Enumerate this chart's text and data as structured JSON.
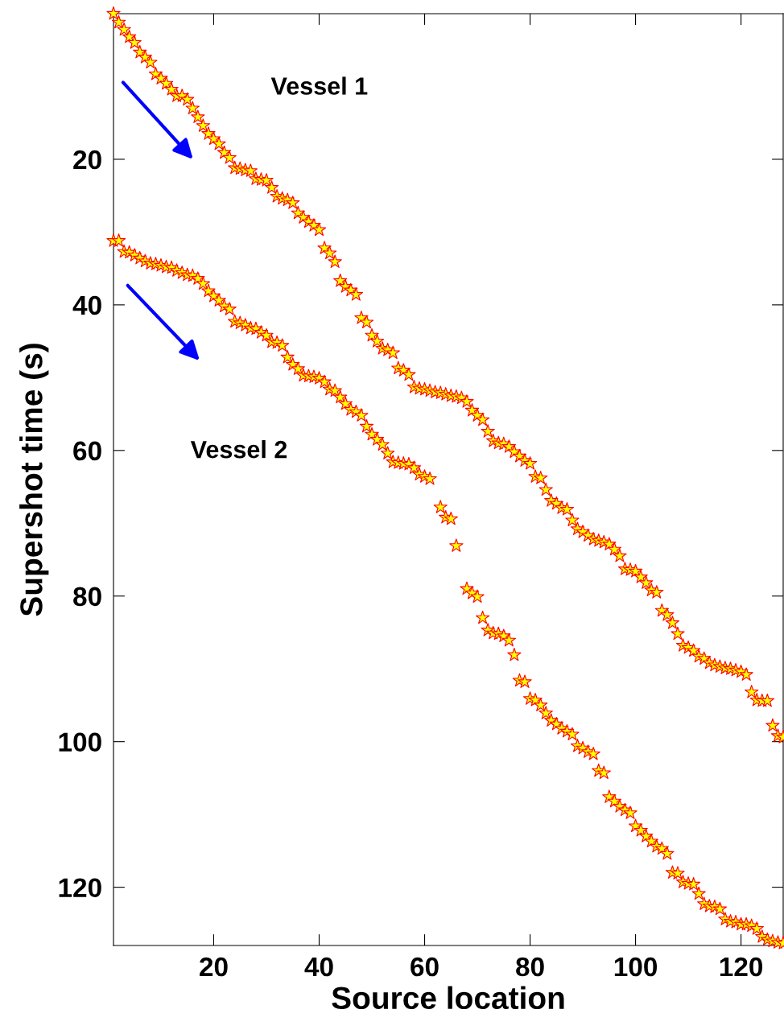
{
  "chart_data": {
    "type": "scatter",
    "xlabel": "Source location",
    "ylabel": "Supershot time (s)",
    "x": [
      1,
      2,
      3,
      4,
      5,
      6,
      7,
      8,
      9,
      10,
      11,
      12,
      13,
      14,
      15,
      16,
      17,
      18,
      19,
      20,
      21,
      22,
      23,
      24,
      25,
      26,
      27,
      28,
      29,
      30,
      31,
      32,
      33,
      34,
      35,
      36,
      37,
      38,
      39,
      40,
      41,
      42,
      43,
      44,
      45,
      46,
      47,
      48,
      49,
      50,
      51,
      52,
      53,
      54,
      55,
      56,
      57,
      58,
      59,
      60,
      61,
      62,
      63,
      64,
      65,
      66,
      67,
      68,
      69,
      70,
      71,
      72,
      73,
      74,
      75,
      76,
      77,
      78,
      79,
      80,
      81,
      82,
      83,
      84,
      85,
      86,
      87,
      88,
      89,
      90,
      91,
      92,
      93,
      94,
      95,
      96,
      97,
      98,
      99,
      100,
      101,
      102,
      103,
      104,
      105,
      106,
      107,
      108,
      109,
      110,
      111,
      112,
      113,
      114,
      115,
      116,
      117,
      118,
      119,
      120,
      121,
      122,
      123,
      124,
      125,
      126,
      127,
      128
    ],
    "series": [
      {
        "name": "Vessel 1",
        "color": "#ffff00",
        "values": [
          0,
          1.2,
          2.2,
          3.2,
          4,
          5.3,
          6,
          6.7,
          8.3,
          8.9,
          9.6,
          10.4,
          11.3,
          11.3,
          11.8,
          13,
          14.2,
          15.4,
          16.5,
          17.2,
          17.9,
          19.1,
          19.8,
          21.2,
          21.3,
          21.5,
          21.6,
          22.7,
          22.8,
          22.9,
          23.9,
          25.1,
          25.4,
          25.6,
          26,
          27.4,
          28,
          28.6,
          29.1,
          29.7,
          32.2,
          32.9,
          34.1,
          36.7,
          37.5,
          38,
          38.6,
          41.8,
          42.4,
          44.2,
          45,
          46,
          46.2,
          46.6,
          48.7,
          49,
          49.6,
          51.3,
          51.5,
          51.6,
          51.8,
          52,
          52.1,
          52.3,
          52.5,
          52.6,
          52.8,
          53.3,
          54.5,
          55.2,
          55.8,
          57.4,
          58.7,
          59,
          59.1,
          59.5,
          60.2,
          60.8,
          61.4,
          61.8,
          63.6,
          63.8,
          65.4,
          66.9,
          67.3,
          67.9,
          68.1,
          69.6,
          70.8,
          71.2,
          71.7,
          72.2,
          72.4,
          72.6,
          72.9,
          73.6,
          74.5,
          76.3,
          76.4,
          76.6,
          77.4,
          78.2,
          79.2,
          79.5,
          82,
          82.6,
          83.7,
          85.2,
          86.8,
          87.1,
          87.5,
          88.3,
          88.6,
          89.2,
          89.5,
          89.7,
          89.9,
          90,
          90.2,
          90.4,
          90.8,
          93.2,
          94.3,
          94.4,
          94.4,
          97.8,
          99.2,
          99.4
        ]
      },
      {
        "name": "Vessel 2",
        "color": "#ffff00",
        "values": [
          31.2,
          31.2,
          32.7,
          32.8,
          33.2,
          33.6,
          34,
          34.3,
          34.4,
          34.6,
          34.8,
          34.9,
          35.3,
          35.6,
          35.9,
          36,
          36.4,
          37.1,
          38.1,
          38.8,
          39.4,
          40.2,
          40.6,
          42.3,
          42.5,
          42.8,
          43.2,
          43.3,
          43.8,
          44.2,
          45.1,
          45.2,
          45.6,
          47.2,
          48.2,
          48.8,
          49.7,
          49.8,
          49.9,
          50.1,
          50.6,
          51.6,
          51.8,
          52.7,
          53.6,
          54.4,
          54.7,
          55.2,
          56.7,
          57.8,
          58.5,
          59.2,
          60.4,
          61.6,
          61.7,
          61.8,
          61.9,
          62.4,
          63.3,
          63.6,
          63.9,
          null,
          67.8,
          69.2,
          69.4,
          73.1,
          null,
          79,
          79.6,
          80.1,
          83,
          84.7,
          85.1,
          85.2,
          85.5,
          86.1,
          88.1,
          91.6,
          91.8,
          94.1,
          94.3,
          95,
          96.1,
          97.1,
          97.6,
          98.2,
          98.6,
          99,
          100.6,
          100.9,
          101.4,
          101.7,
          104,
          104.3,
          107.6,
          108.2,
          108.9,
          109.4,
          109.8,
          111.6,
          112.2,
          113,
          113.7,
          114.4,
          114.7,
          115.4,
          118,
          118.1,
          119.3,
          119.5,
          119.6,
          120.9,
          122.3,
          122.6,
          122.7,
          123,
          124.4,
          124.7,
          124.8,
          125.1,
          125.1,
          125.3,
          125.7,
          126.8,
          127.2,
          127.4,
          127.6,
          127.7
        ]
      }
    ],
    "xlim": [
      1,
      128
    ],
    "xticks": [
      20,
      40,
      60,
      80,
      100,
      120
    ],
    "ylim": [
      128,
      0
    ],
    "yticks": [
      20,
      40,
      60,
      80,
      100,
      120
    ],
    "marker": "star",
    "grid": false,
    "legend": false
  }
}
